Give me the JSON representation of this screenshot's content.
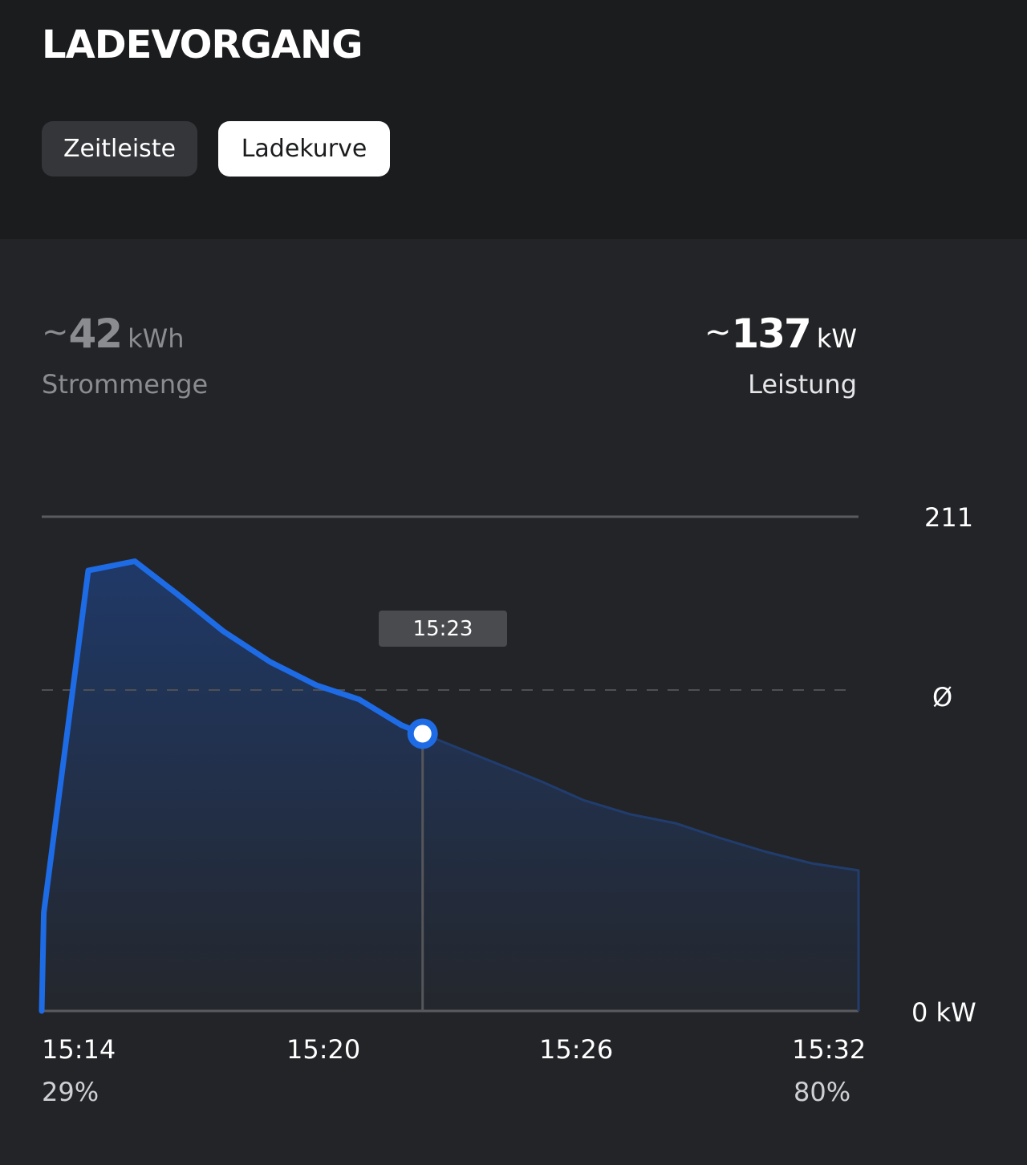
{
  "header": {
    "title": "LADEVORGANG",
    "tabs": [
      {
        "label": "Zeitleiste",
        "active": false
      },
      {
        "label": "Ladekurve",
        "active": true
      }
    ]
  },
  "stats": {
    "energy": {
      "prefix": "~",
      "value": "42",
      "unit": "kWh",
      "label": "Strommenge"
    },
    "power": {
      "prefix": "~",
      "value": "137",
      "unit": "kW",
      "label": "Leistung"
    }
  },
  "tooltip": {
    "time": "15:23"
  },
  "chart_data": {
    "type": "area",
    "x_labels": [
      "15:14",
      "15:20",
      "15:26",
      "15:32"
    ],
    "soc_labels": {
      "start": "29%",
      "end": "80%"
    },
    "y_labels": {
      "top": "211",
      "avg": "Ø",
      "bottom": "0 kW"
    },
    "ylim": [
      0,
      211
    ],
    "average_line": 137,
    "selected_time": "15:23",
    "colors": {
      "line": "#1e6be6",
      "fill": "#1f3a6b",
      "grid": "#5a5b5f"
    },
    "series": [
      {
        "x_minutes": [
          0,
          0.05,
          1.1,
          2.2,
          3.2,
          4.3,
          5.4,
          6.5,
          7.5,
          8.5,
          9.6,
          10.7,
          11.8,
          12.8,
          13.9,
          15,
          16,
          17.1,
          18.2,
          19.3
        ],
        "values": [
          0,
          42,
          188,
          192,
          178,
          162,
          149,
          139,
          133,
          122,
          114,
          106,
          98,
          90,
          84,
          80,
          74,
          68,
          63,
          60
        ]
      }
    ]
  }
}
